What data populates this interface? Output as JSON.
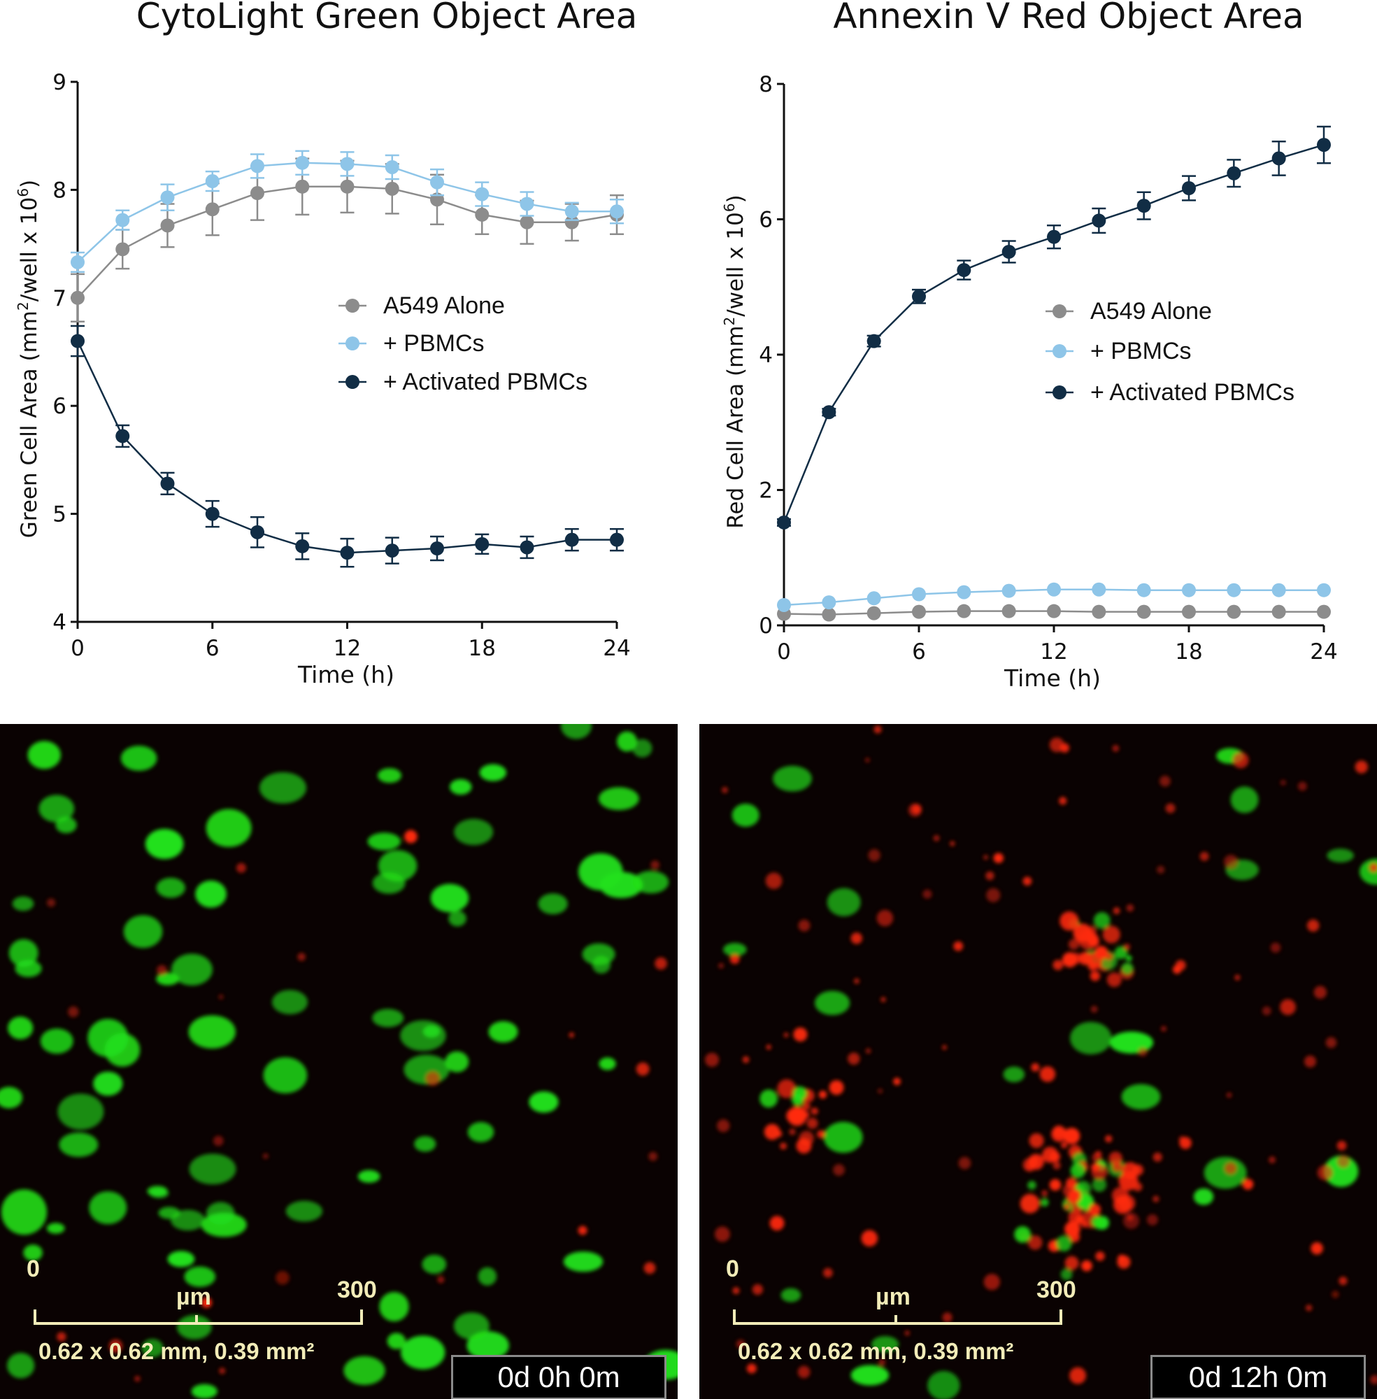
{
  "chart_data": [
    {
      "type": "line",
      "title": "CytoLight Green Object Area",
      "xlabel": "Time (h)",
      "ylabel": "Green Cell Area (mm²/well x 10⁶)",
      "ylabel_parts": [
        "Green Cell Area (mm",
        "2",
        "/well x 10",
        "6",
        ")"
      ],
      "xlim": [
        0,
        24
      ],
      "ylim": [
        4,
        9
      ],
      "xticks": [
        "0",
        "6",
        "12",
        "18",
        "24"
      ],
      "yticks": [
        "4",
        "5",
        "6",
        "7",
        "8",
        "9"
      ],
      "x": [
        0,
        2,
        4,
        6,
        8,
        10,
        12,
        14,
        16,
        18,
        20,
        22,
        24
      ],
      "legend": "right-middle",
      "grid": false,
      "series": [
        {
          "name": "A549 Alone",
          "color": "#8c8c8c",
          "values": [
            7.0,
            7.45,
            7.67,
            7.82,
            7.97,
            8.03,
            8.03,
            8.01,
            7.91,
            7.77,
            7.7,
            7.7,
            7.77
          ],
          "errors": [
            0.22,
            0.18,
            0.2,
            0.24,
            0.25,
            0.26,
            0.24,
            0.23,
            0.23,
            0.18,
            0.2,
            0.17,
            0.18
          ]
        },
        {
          "name": "+ PBMCs",
          "color": "#8ec5e8",
          "values": [
            7.33,
            7.72,
            7.93,
            8.08,
            8.22,
            8.25,
            8.24,
            8.21,
            8.07,
            7.96,
            7.87,
            7.8,
            7.8
          ],
          "errors": [
            0.09,
            0.09,
            0.12,
            0.09,
            0.11,
            0.11,
            0.11,
            0.11,
            0.12,
            0.11,
            0.11,
            0.08,
            0.11
          ]
        },
        {
          "name": "+ Activated PBMCs",
          "color": "#112d45",
          "values": [
            6.6,
            5.72,
            5.28,
            5.0,
            4.83,
            4.7,
            4.64,
            4.66,
            4.68,
            4.72,
            4.69,
            4.76,
            4.76
          ],
          "errors": [
            0.14,
            0.1,
            0.1,
            0.12,
            0.14,
            0.12,
            0.13,
            0.12,
            0.11,
            0.09,
            0.1,
            0.1,
            0.1
          ]
        }
      ]
    },
    {
      "type": "line",
      "title": "Annexin V Red Object Area",
      "xlabel": "Time (h)",
      "ylabel": "Red Cell Area (mm²/well x 10⁶)",
      "ylabel_parts": [
        "Red Cell Area (mm",
        "2",
        "/well x 10",
        "6",
        ")"
      ],
      "xlim": [
        0,
        24
      ],
      "ylim": [
        0,
        8
      ],
      "xticks": [
        "0",
        "6",
        "12",
        "18",
        "24"
      ],
      "yticks": [
        "0",
        "2",
        "4",
        "6",
        "8"
      ],
      "x": [
        0,
        2,
        4,
        6,
        8,
        10,
        12,
        14,
        16,
        18,
        20,
        22,
        24
      ],
      "legend": "right-middle",
      "grid": false,
      "series": [
        {
          "name": "A549 Alone",
          "color": "#8c8c8c",
          "values": [
            0.17,
            0.16,
            0.18,
            0.2,
            0.21,
            0.21,
            0.21,
            0.2,
            0.2,
            0.2,
            0.2,
            0.2,
            0.2
          ],
          "errors": [
            0,
            0,
            0,
            0,
            0,
            0,
            0,
            0,
            0,
            0,
            0,
            0,
            0
          ]
        },
        {
          "name": "+ PBMCs",
          "color": "#8ec5e8",
          "values": [
            0.3,
            0.34,
            0.4,
            0.46,
            0.49,
            0.51,
            0.53,
            0.53,
            0.52,
            0.52,
            0.52,
            0.52,
            0.52
          ],
          "errors": [
            0,
            0,
            0,
            0,
            0,
            0,
            0,
            0,
            0,
            0,
            0,
            0,
            0
          ]
        },
        {
          "name": "+ Activated PBMCs",
          "color": "#112d45",
          "values": [
            1.52,
            3.15,
            4.2,
            4.86,
            5.25,
            5.52,
            5.74,
            5.98,
            6.2,
            6.46,
            6.68,
            6.9,
            7.1
          ],
          "errors": [
            0.05,
            0.05,
            0.08,
            0.1,
            0.14,
            0.16,
            0.17,
            0.18,
            0.2,
            0.18,
            0.2,
            0.25,
            0.27
          ]
        }
      ]
    }
  ],
  "images": [
    {
      "scale_min": "0",
      "scale_unit": "µm",
      "scale_max": "300",
      "field": "0.62 x 0.62 mm, 0.39 mm²",
      "timestamp": "0d 0h 0m"
    },
    {
      "scale_min": "0",
      "scale_unit": "µm",
      "scale_max": "300",
      "field": "0.62 x 0.62 mm, 0.39 mm²",
      "timestamp": "0d 12h 0m"
    }
  ],
  "colors": {
    "green_cells": "#22e01a",
    "red_cells": "#ff2a10",
    "scale_bar": "#f2ecb8"
  }
}
